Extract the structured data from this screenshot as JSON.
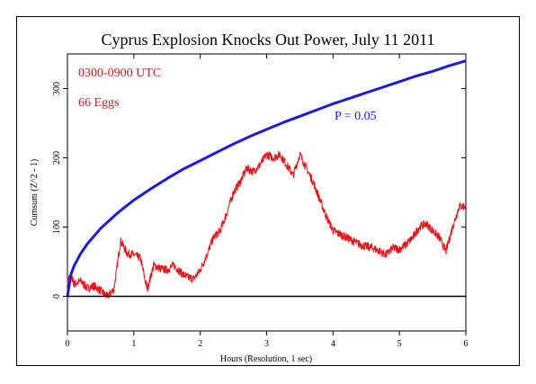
{
  "chart_data": {
    "type": "line",
    "title": "Cyprus Explosion Knocks Out Power, July 11 2011",
    "xlabel": "Hours (Resolution, 1 sec)",
    "ylabel": "Cumsum (Z^2 - 1)",
    "xlim": [
      0,
      6
    ],
    "ylim": [
      -50,
      350
    ],
    "x_ticks": [
      "0",
      "1",
      "2",
      "3",
      "4",
      "5",
      "6"
    ],
    "y_ticks": [
      "0",
      "100",
      "200",
      "300"
    ],
    "annotations": {
      "time_range": "0300-0900 UTC",
      "eggs": "66 Eggs",
      "p_label": "P = 0.05"
    },
    "series": [
      {
        "color": "#e8141b",
        "x": [
          0,
          0.05,
          0.1,
          0.2,
          0.3,
          0.4,
          0.5,
          0.6,
          0.7,
          0.8,
          0.9,
          1.0,
          1.1,
          1.2,
          1.3,
          1.4,
          1.5,
          1.6,
          1.7,
          1.8,
          1.9,
          2.0,
          2.1,
          2.2,
          2.3,
          2.4,
          2.5,
          2.6,
          2.7,
          2.8,
          2.9,
          3.0,
          3.1,
          3.2,
          3.3,
          3.4,
          3.5,
          3.6,
          3.7,
          3.8,
          3.9,
          4.0,
          4.1,
          4.2,
          4.3,
          4.4,
          4.5,
          4.6,
          4.7,
          4.8,
          4.9,
          5.0,
          5.1,
          5.2,
          5.3,
          5.4,
          5.5,
          5.6,
          5.7,
          5.8,
          5.9,
          6.0
        ],
        "y": [
          22,
          30,
          18,
          22,
          12,
          15,
          8,
          0,
          10,
          80,
          62,
          60,
          55,
          10,
          45,
          40,
          38,
          45,
          35,
          28,
          25,
          38,
          60,
          85,
          95,
          120,
          150,
          165,
          185,
          180,
          190,
          205,
          200,
          205,
          190,
          175,
          205,
          185,
          165,
          140,
          115,
          95,
          90,
          85,
          80,
          75,
          72,
          70,
          65,
          60,
          70,
          68,
          75,
          85,
          100,
          105,
          95,
          85,
          65,
          100,
          130,
          130
        ]
      },
      {
        "color": "#1b1be0",
        "x": [
          0,
          0.05,
          0.1,
          0.2,
          0.3,
          0.5,
          0.75,
          1.0,
          1.25,
          1.5,
          1.75,
          2.0,
          2.25,
          2.5,
          2.75,
          3.0,
          3.25,
          3.5,
          3.75,
          4.0,
          4.25,
          4.5,
          4.75,
          5.0,
          5.25,
          5.5,
          5.75,
          6.0
        ],
        "y": [
          0,
          31,
          44,
          62,
          76,
          98,
          120,
          139,
          155,
          170,
          184,
          196,
          208,
          220,
          231,
          241,
          251,
          260,
          269,
          278,
          286,
          294,
          302,
          310,
          318,
          325,
          333,
          340
        ]
      },
      {
        "color": "#000000",
        "x": [
          0,
          6
        ],
        "y": [
          0,
          0
        ]
      }
    ]
  }
}
